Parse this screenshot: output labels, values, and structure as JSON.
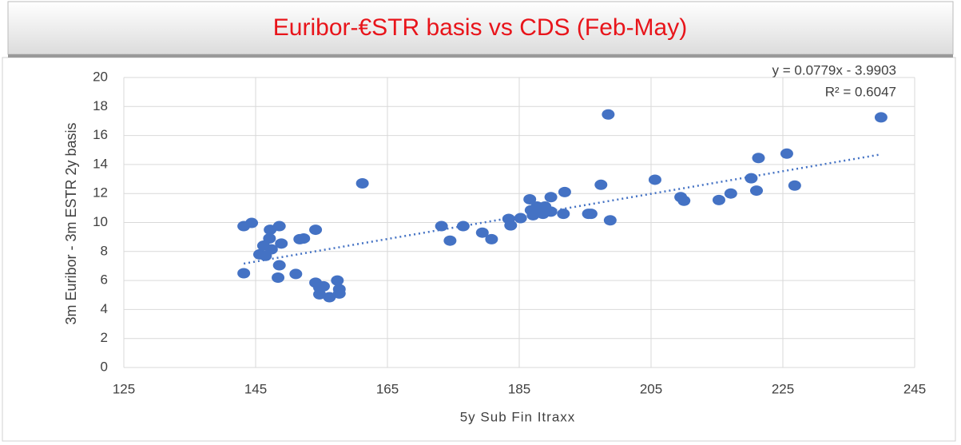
{
  "chart_data": {
    "type": "scatter",
    "title": "Euribor-€STR basis vs CDS (Feb-May)",
    "x_label": "5y Sub Fin Itraxx",
    "y_label": "3m Euribor - 3m ESTR 2y basis",
    "xlim": [
      125,
      245
    ],
    "xticks": [
      125,
      145,
      165,
      185,
      205,
      225,
      245
    ],
    "ylim": [
      0,
      20
    ],
    "yticks": [
      0,
      2,
      4,
      6,
      8,
      10,
      12,
      14,
      16,
      18,
      20
    ],
    "grid": true,
    "series": [
      {
        "color": "#4472c4",
        "x": [
          143.2,
          144.4,
          143.2,
          145.6,
          146.2,
          146.5,
          147.1,
          147.2,
          147.4,
          148.6,
          148.9,
          148.6,
          148.4,
          151.1,
          151.7,
          152.3,
          154.1,
          154.1,
          154.7,
          154.7,
          155.3,
          156.2,
          157.4,
          157.7,
          157.7,
          161.2,
          173.2,
          174.5,
          176.5,
          179.4,
          180.8,
          183.4,
          183.7,
          185.2,
          186.6,
          186.8,
          187.1,
          187.7,
          188.3,
          188.6,
          188.9,
          189.8,
          189.8,
          191.9,
          191.7,
          195.5,
          195.9,
          197.4,
          198.5,
          198.8,
          205.6,
          209.5,
          210.0,
          215.3,
          217.1,
          220.2,
          221.0,
          221.3,
          225.6,
          226.8,
          239.9
        ],
        "values": [
          9.75,
          9.97,
          6.5,
          7.8,
          8.4,
          7.7,
          8.9,
          9.5,
          8.15,
          9.75,
          8.55,
          7.05,
          6.2,
          6.45,
          8.85,
          8.9,
          9.5,
          5.85,
          5.5,
          5.05,
          5.6,
          4.85,
          6.0,
          5.4,
          5.1,
          12.7,
          9.75,
          8.75,
          9.75,
          9.3,
          8.85,
          10.25,
          9.8,
          10.3,
          11.6,
          10.85,
          10.5,
          11.1,
          10.7,
          10.6,
          11.1,
          11.75,
          10.75,
          12.1,
          10.6,
          10.6,
          10.6,
          12.6,
          17.45,
          10.15,
          12.95,
          11.75,
          11.5,
          11.55,
          12.0,
          13.05,
          12.2,
          14.45,
          14.75,
          12.55,
          17.25
        ]
      }
    ],
    "trendline": {
      "slope": 0.0779,
      "intercept": -3.9903,
      "equation": "y = 0.0779x - 3.9903",
      "r_squared": "R² = 0.6047"
    }
  }
}
